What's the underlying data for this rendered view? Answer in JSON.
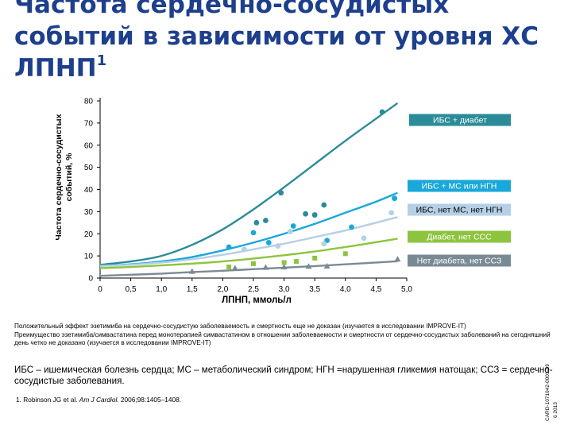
{
  "title": {
    "line1": "Частота сердечно-сосудистых",
    "line2": "событий в зависимости от уровня ХС",
    "line3_main": "ЛПНП",
    "line3_sup": "1"
  },
  "chart_data": {
    "type": "scatter",
    "xlabel": "ЛПНП, ммоль/л",
    "ylabel": "Частота сердечно-сосудистых событий, %",
    "xlim": [
      0,
      5
    ],
    "ylim": [
      0,
      80
    ],
    "x_ticks": [
      "0",
      "0,5",
      "1,0",
      "1,5",
      "2,0",
      "2,5",
      "3,0",
      "3,5",
      "4,0",
      "4,5",
      "5,0"
    ],
    "y_ticks": [
      "0",
      "10",
      "20",
      "30",
      "40",
      "50",
      "60",
      "70",
      "80"
    ],
    "grid": false,
    "legend": "labels at right end of each curve",
    "series": [
      {
        "name": "ИБС + диабет",
        "color": "#2a8c98",
        "curve": [
          [
            0,
            6
          ],
          [
            0.5,
            7.5
          ],
          [
            1.0,
            10
          ],
          [
            1.5,
            15
          ],
          [
            2.0,
            22
          ],
          [
            2.5,
            31
          ],
          [
            3.0,
            41
          ],
          [
            3.5,
            51.5
          ],
          [
            4.0,
            62
          ],
          [
            4.5,
            72
          ],
          [
            4.85,
            79
          ]
        ],
        "points": [
          [
            2.55,
            25
          ],
          [
            2.7,
            26
          ],
          [
            2.95,
            38.5
          ],
          [
            3.35,
            29
          ],
          [
            3.5,
            28.5
          ],
          [
            3.65,
            33
          ],
          [
            4.6,
            75
          ],
          [
            4.8,
            36
          ]
        ]
      },
      {
        "name": "ИБС + МС или НГН",
        "color": "#1aa7d9",
        "curve": [
          [
            0,
            5.5
          ],
          [
            0.5,
            6.2
          ],
          [
            1.0,
            7.5
          ],
          [
            1.5,
            9.5
          ],
          [
            2.0,
            12.5
          ],
          [
            2.5,
            16
          ],
          [
            3.0,
            20
          ],
          [
            3.5,
            24.5
          ],
          [
            4.0,
            29.5
          ],
          [
            4.5,
            34.5
          ],
          [
            4.85,
            38.5
          ]
        ],
        "points": [
          [
            2.1,
            14
          ],
          [
            2.5,
            20.5
          ],
          [
            2.75,
            16
          ],
          [
            3.15,
            23.5
          ],
          [
            3.7,
            17
          ],
          [
            4.1,
            23
          ],
          [
            4.8,
            36
          ]
        ]
      },
      {
        "name": "ИБС, нет МС, нет НГН",
        "color": "#b5cfe6",
        "curve": [
          [
            0,
            5.5
          ],
          [
            0.5,
            6
          ],
          [
            1.0,
            7
          ],
          [
            1.5,
            8.5
          ],
          [
            2.0,
            10.5
          ],
          [
            2.5,
            13
          ],
          [
            3.0,
            15.5
          ],
          [
            3.5,
            18.5
          ],
          [
            4.0,
            21.5
          ],
          [
            4.5,
            25
          ],
          [
            4.85,
            27.5
          ]
        ],
        "points": [
          [
            2.35,
            13
          ],
          [
            2.9,
            14.5
          ],
          [
            3.1,
            21
          ],
          [
            3.65,
            15.5
          ],
          [
            4.3,
            18
          ],
          [
            4.75,
            29.5
          ]
        ]
      },
      {
        "name": "Диабет, нет ССС",
        "color": "#8dc43f",
        "curve": [
          [
            0,
            4.5
          ],
          [
            0.5,
            5
          ],
          [
            1.0,
            5.7
          ],
          [
            1.5,
            6.5
          ],
          [
            2.0,
            7.5
          ],
          [
            2.5,
            8.8
          ],
          [
            3.0,
            10.3
          ],
          [
            3.5,
            12
          ],
          [
            4.0,
            14
          ],
          [
            4.5,
            16.2
          ],
          [
            4.85,
            17.8
          ]
        ],
        "points": [
          [
            2.1,
            5
          ],
          [
            2.5,
            6.5
          ],
          [
            3.0,
            7
          ],
          [
            3.2,
            7.5
          ],
          [
            3.5,
            9
          ],
          [
            4.0,
            11
          ]
        ]
      },
      {
        "name": "Нет диабета, нет ССЗ",
        "color": "#7a8a94",
        "curve": [
          [
            0,
            1
          ],
          [
            0.5,
            1.5
          ],
          [
            1.0,
            2
          ],
          [
            1.5,
            2.7
          ],
          [
            2.0,
            3.3
          ],
          [
            2.5,
            4
          ],
          [
            3.0,
            4.7
          ],
          [
            3.5,
            5.4
          ],
          [
            4.0,
            6.2
          ],
          [
            4.5,
            7
          ],
          [
            4.85,
            7.6
          ]
        ],
        "points": [
          [
            1.5,
            3
          ],
          [
            2.2,
            4.5
          ],
          [
            2.7,
            4.8
          ],
          [
            3.0,
            5
          ],
          [
            3.4,
            5.3
          ],
          [
            3.7,
            5.4
          ],
          [
            4.85,
            8.5
          ]
        ]
      }
    ]
  },
  "notes": {
    "line1": "Положительный эффект эзетимиба на сердечно-сосудистую заболеваемость и смертность еще не доказан (изучается в исследовании IMPROVE-IT)",
    "line2": "Преимущество эзетимиба/симвастатина перед монотерапией симвастатином в отношении заболеваемости и смертности от сердечно-сосудистых заболеваний на сегодняшний день четко не доказано (изучается в исследовании IMPROVE-IT)"
  },
  "definitions": "ИБС – ишемическая болезнь сердца; МС – метаболический синдром; НГН =нарушенная гликемия натощак; ССЗ = сердечно-сосудистые заболевания.",
  "reference": {
    "text1": "1. Robinson JG et al. ",
    "journal": "Am J Cardiol.",
    "text2": " 2006;98:1405–1408."
  },
  "side_code": "CARD-1071042-0001-09",
  "side_date": "2013",
  "side_num": "6"
}
